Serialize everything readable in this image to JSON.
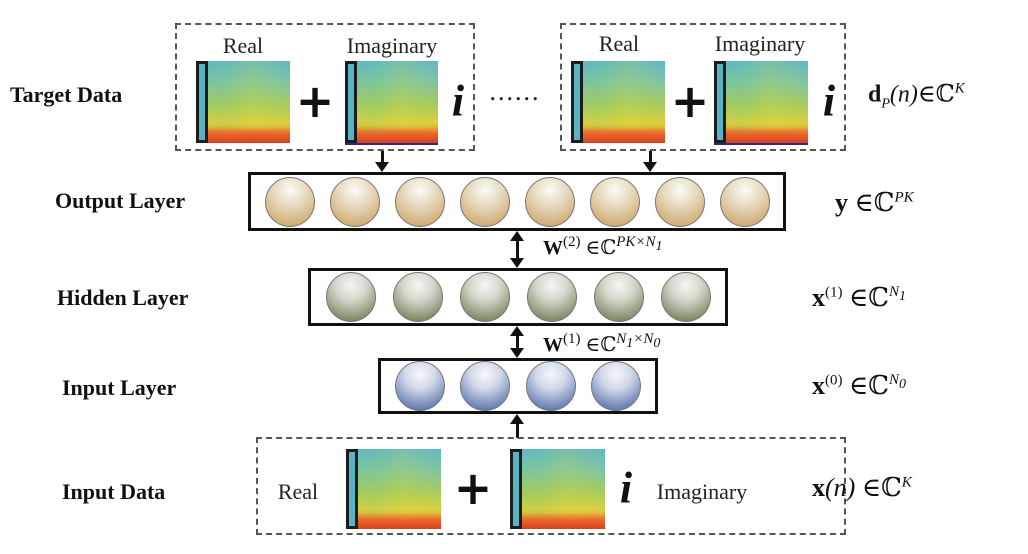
{
  "rows": {
    "target_data": "Target Data",
    "output_layer": "Output Layer",
    "hidden_layer": "Hidden Layer",
    "input_layer": "Input Layer",
    "input_data": "Input Data"
  },
  "target_blocks": [
    {
      "real_label": "Real",
      "imag_label": "Imaginary",
      "plus": "+",
      "imag_unit": "i"
    },
    {
      "real_label": "Real",
      "imag_label": "Imaginary",
      "plus": "+",
      "imag_unit": "i"
    }
  ],
  "ellipsis": "......",
  "input_block": {
    "real_label": "Real",
    "imag_label": "Imaginary",
    "plus": "+",
    "imag_unit": "i"
  },
  "layers": {
    "output_nodes": 8,
    "hidden_nodes": 6,
    "input_nodes": 4
  },
  "colors": {
    "output_node": "#c89a52",
    "hidden_node": "#5e6b3e",
    "input_node": "#3a5a9e"
  },
  "formulas": {
    "target": {
      "var": "d",
      "sub": "P",
      "arg": "(n)",
      "in": "∈",
      "set": "ℂ",
      "sup": "K"
    },
    "output": {
      "var": "y",
      "in": "∈",
      "set": "ℂ",
      "sup": "PK"
    },
    "hidden": {
      "var": "x",
      "idx": "(1)",
      "in": "∈",
      "set": "ℂ",
      "sup": "N",
      "sup_sub": "1"
    },
    "input": {
      "var": "x",
      "idx": "(0)",
      "in": "∈",
      "set": "ℂ",
      "sup": "N",
      "sup_sub": "0"
    },
    "data": {
      "var": "x",
      "arg": "(n)",
      "in": "∈",
      "set": "ℂ",
      "sup": "K"
    },
    "w2": {
      "var": "W",
      "idx": "(2)",
      "in": "∈",
      "set": "ℂ",
      "sup": "PK×N",
      "sup_sub": "1"
    },
    "w1": {
      "var": "W",
      "idx": "(1)",
      "in": "∈",
      "set": "ℂ",
      "sup": "N",
      "sup_sub": "1",
      "sup2": "×N",
      "sup_sub2": "0"
    }
  }
}
